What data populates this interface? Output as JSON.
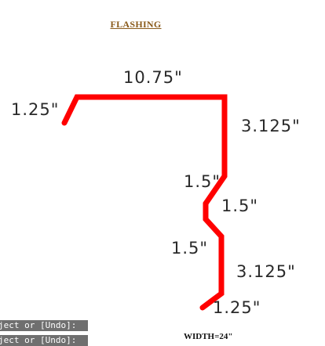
{
  "title": "FLASHING",
  "dimensions": {
    "top": "10.75\"",
    "left_hem": "1.25\"",
    "right_upper": "3.125\"",
    "offset_upper": "1.5\"",
    "offset_middle": "1.5\"",
    "offset_lower": "1.5\"",
    "right_lower": "3.125\"",
    "bottom_hem": "1.25\""
  },
  "width_label": "WIDTH=24\"",
  "command_lines": [
    "ject or [Undo]:",
    "ject or [Undo]:"
  ],
  "colors": {
    "profile_line": "#ff0000",
    "title": "#8a5a1a",
    "command_bg": "#6f6f6f"
  }
}
